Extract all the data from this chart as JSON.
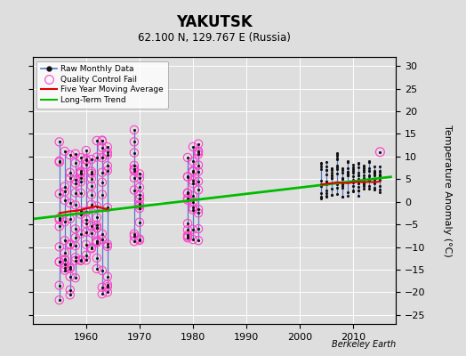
{
  "title": "YAKUTSK",
  "subtitle": "62.100 N, 129.767 E (Russia)",
  "ylabel": "Temperature Anomaly (°C)",
  "credit": "Berkeley Earth",
  "ylim": [
    -27,
    32
  ],
  "xlim": [
    1950,
    2018
  ],
  "yticks": [
    -25,
    -20,
    -15,
    -10,
    -5,
    0,
    5,
    10,
    15,
    20,
    25,
    30
  ],
  "xticks": [
    1960,
    1970,
    1980,
    1990,
    2000,
    2010
  ],
  "bg_color": "#dedede",
  "plot_bg_color": "#dedede",
  "grid_color": "#ffffff",
  "raw_line_color": "#5577cc",
  "raw_marker_color": "#111111",
  "qc_fail_color": "#ff44cc",
  "moving_avg_color": "#dd0000",
  "trend_color": "#00bb00",
  "period1_years": [
    1955,
    1956,
    1957,
    1958,
    1959,
    1960,
    1961,
    1962,
    1963,
    1964
  ],
  "period1_min": [
    -22,
    -20,
    -21,
    -19,
    -15,
    -14,
    -11,
    -16,
    -22,
    -20
  ],
  "period1_max": [
    14,
    14,
    13,
    13,
    12,
    14,
    14,
    15,
    14,
    13
  ],
  "period1_qc": [
    true,
    true,
    true,
    true,
    true,
    true,
    true,
    true,
    true,
    true
  ],
  "period2_years": [
    1969,
    1970
  ],
  "period2_min": [
    -12,
    -11
  ],
  "period2_max": [
    16,
    7
  ],
  "period2_qc": [
    true,
    true
  ],
  "period3_years": [
    1979,
    1980,
    1981
  ],
  "period3_min": [
    -11,
    -12,
    -11
  ],
  "period3_max": [
    13,
    14,
    13
  ],
  "period3_qc": [
    true,
    true,
    true
  ],
  "period4_years": [
    2004,
    2005,
    2006,
    2007,
    2008,
    2009,
    2010,
    2011,
    2012,
    2013,
    2014,
    2015
  ],
  "period4_min": [
    0,
    -1,
    1,
    1,
    0,
    1,
    2,
    1,
    2,
    2,
    1,
    2
  ],
  "period4_max": [
    9,
    9,
    8,
    11,
    8,
    9,
    9,
    9,
    8,
    9,
    8,
    8
  ],
  "period4_qc": [
    false,
    false,
    false,
    false,
    false,
    false,
    false,
    false,
    false,
    false,
    false,
    false
  ],
  "qc_single_x": 2015.0,
  "qc_single_y": 11.0,
  "ma1_x": [
    1955,
    1956,
    1957,
    1958,
    1959,
    1960,
    1961,
    1962,
    1963,
    1964
  ],
  "ma1_y": [
    -2.5,
    -2.3,
    -2.1,
    -2.0,
    -1.8,
    -1.5,
    -1.2,
    -1.0,
    -1.4,
    -1.6
  ],
  "ma2_x": [
    2004,
    2005,
    2006,
    2007,
    2008,
    2009,
    2010,
    2011,
    2012,
    2013,
    2014,
    2015
  ],
  "ma2_y": [
    3.8,
    4.0,
    4.1,
    4.3,
    4.2,
    4.1,
    4.3,
    4.4,
    4.3,
    4.4,
    4.3,
    4.5
  ],
  "trend_x": [
    1950,
    2017
  ],
  "trend_y": [
    -3.8,
    5.5
  ]
}
